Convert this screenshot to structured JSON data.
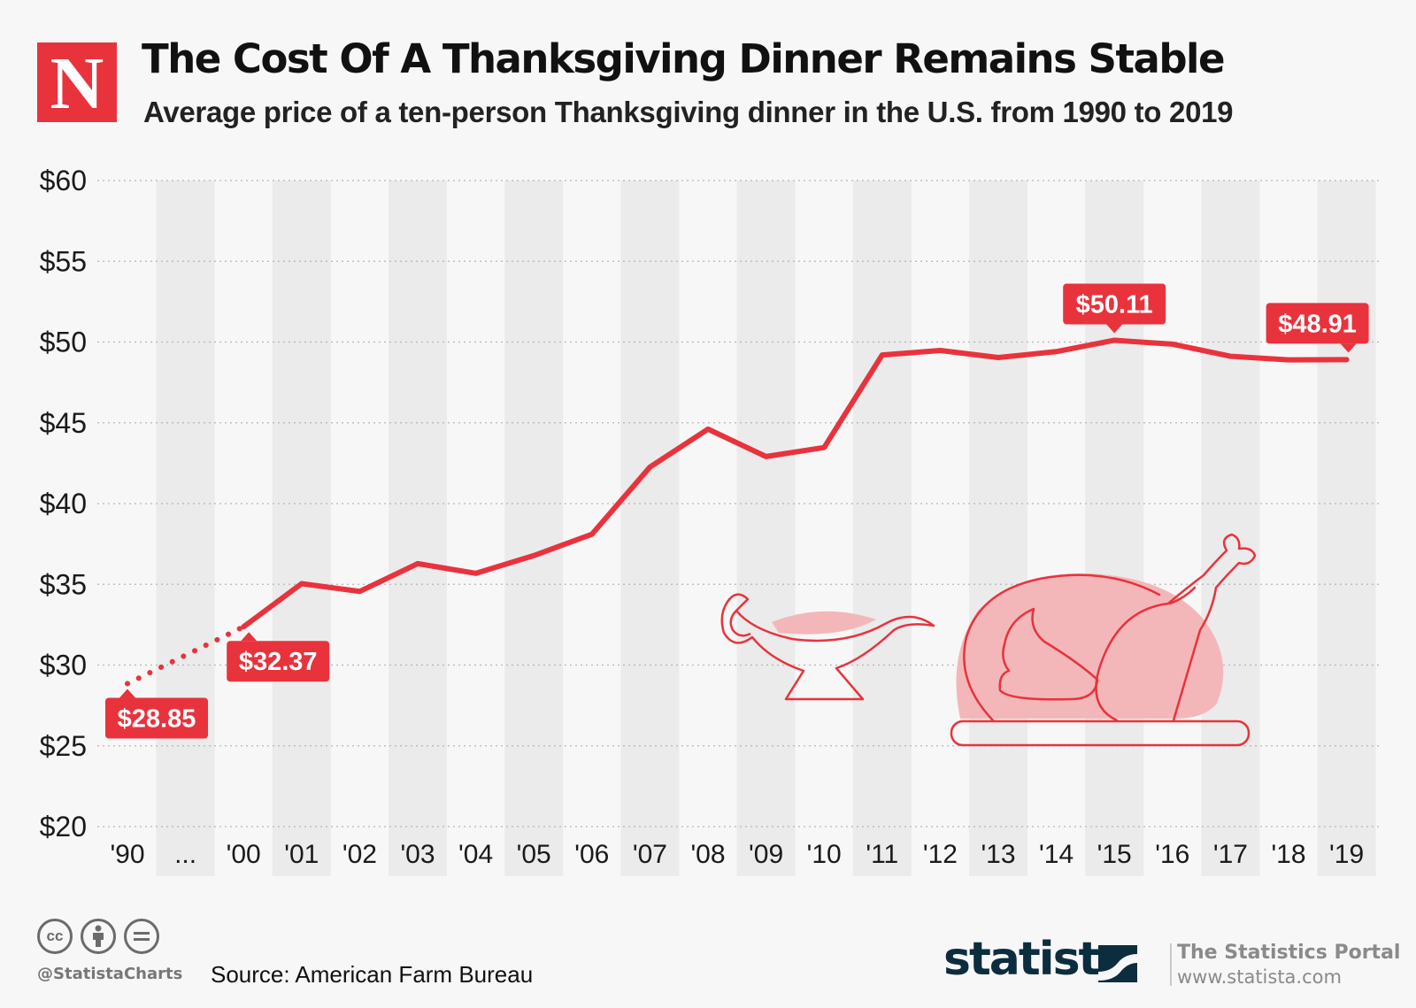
{
  "header": {
    "logo_letter": "N",
    "title": "The Cost Of A Thanksgiving Dinner Remains Stable",
    "subtitle": "Average price of a ten-person Thanksgiving dinner in the U.S. from 1990 to 2019"
  },
  "colors": {
    "accent": "#e8333d",
    "stripe": "#ebebeb",
    "background": "#f7f7f7",
    "statista_navy": "#0b2d3e"
  },
  "chart_data": {
    "type": "line",
    "categories": [
      "'90",
      "...",
      "'00",
      "'01",
      "'02",
      "'03",
      "'04",
      "'05",
      "'06",
      "'07",
      "'08",
      "'09",
      "'10",
      "'11",
      "'12",
      "'13",
      "'14",
      "'15",
      "'16",
      "'17",
      "'18",
      "'19"
    ],
    "series": [
      {
        "values": [
          28.85,
          null,
          32.37,
          35.04,
          34.56,
          36.28,
          35.68,
          36.78,
          38.1,
          42.26,
          44.61,
          42.91,
          43.47,
          49.2,
          49.48,
          49.04,
          49.41,
          50.11,
          49.87,
          49.12,
          48.9,
          48.91
        ]
      }
    ],
    "dotted_segment_categories": [
      "'90",
      "'00"
    ],
    "data_labels": [
      {
        "category": "'90",
        "text": "$28.85"
      },
      {
        "category": "'00",
        "text": "$32.37"
      },
      {
        "category": "'15",
        "text": "$50.11"
      },
      {
        "category": "'19",
        "text": "$48.91"
      }
    ],
    "y_ticks": [
      20,
      25,
      30,
      35,
      40,
      45,
      50,
      55,
      60
    ],
    "y_tick_labels": [
      "$20",
      "$25",
      "$30",
      "$35",
      "$40",
      "$45",
      "$50",
      "$55",
      "$60"
    ],
    "ylim": [
      20,
      60
    ],
    "grid": true,
    "alternating_column_stripes": true,
    "decorations": [
      "gravy-boat-icon",
      "roast-turkey-icon"
    ]
  },
  "footer": {
    "license_icons": [
      "cc-icon",
      "attribution-icon",
      "no-derivatives-icon"
    ],
    "handle": "@StatistaCharts",
    "source": "Source: American Farm Bureau",
    "brand": "statista",
    "portal_name": "The Statistics Portal",
    "portal_url": "www.statista.com"
  }
}
